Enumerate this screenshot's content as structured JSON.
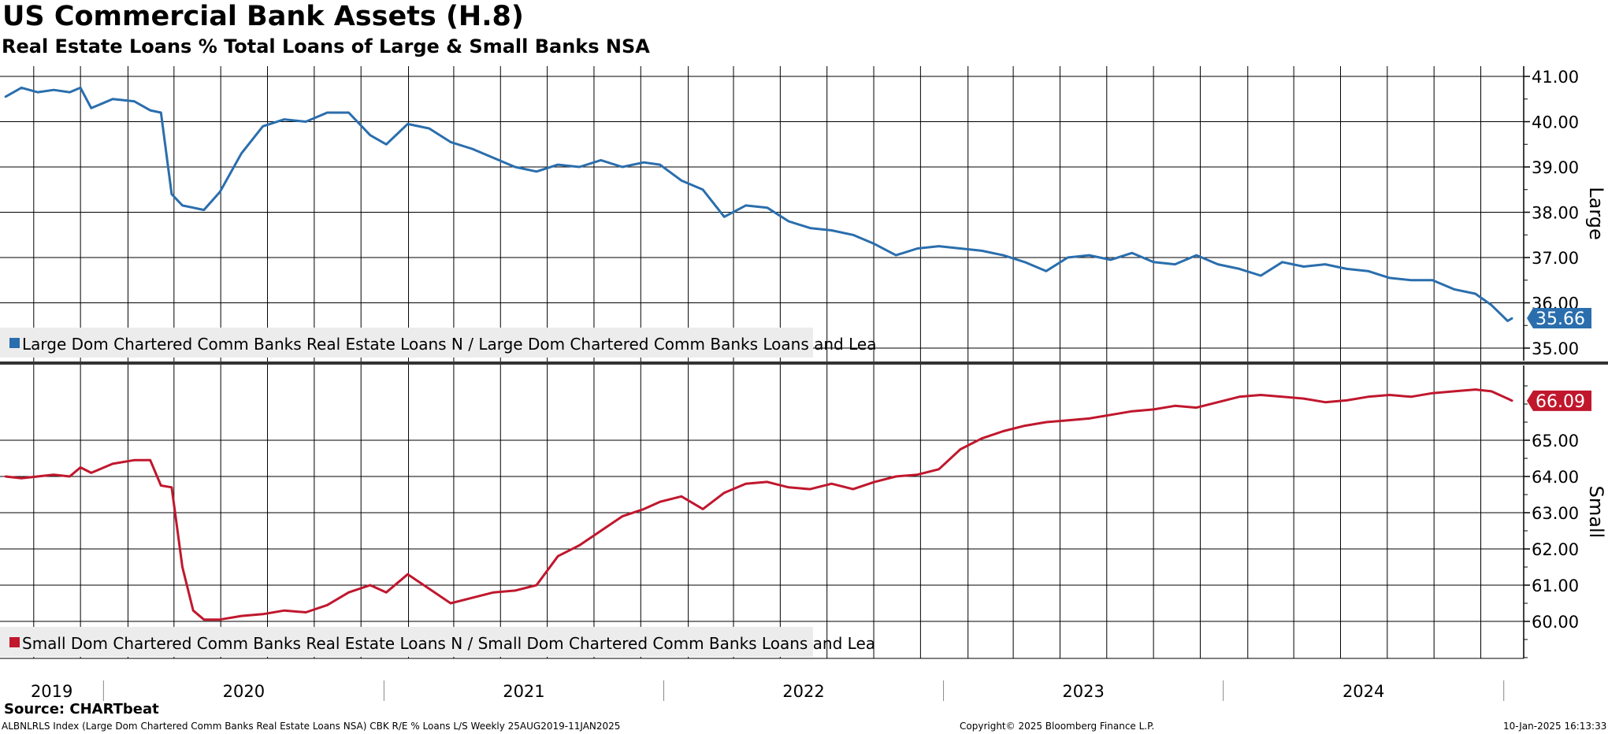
{
  "title": "US Commercial Bank Assets (H.8)",
  "subtitle": "Real Estate Loans % Total Loans of Large & Small Banks NSA",
  "source": "Source: CHARTbeat",
  "footer": {
    "left": "ALBNLRLS Index (Large Dom Chartered Comm Banks Real Estate Loans NSA) CBK R/E % Loans L/S  Weekly 25AUG2019-11JAN2025",
    "center": "Copyright© 2025 Bloomberg Finance L.P.",
    "right": "10-Jan-2025 16:13:33"
  },
  "colors": {
    "large": "#2a6ead",
    "small": "#c0172d",
    "grid": "#000000",
    "legend_bg": "#ececec"
  },
  "chart_data": [
    {
      "type": "line",
      "panel": "top",
      "axis_label": "Large",
      "ylim": [
        34.6,
        41.2
      ],
      "yticks": [
        "41.00",
        "40.00",
        "39.00",
        "38.00",
        "37.00",
        "36.00",
        "35.00"
      ],
      "grid": true,
      "legend_placement": "bottom-left",
      "x_tick_labels": [
        "2019",
        "2020",
        "2021",
        "2022",
        "2023",
        "2024"
      ],
      "last_value_label": "35.66",
      "series": [
        {
          "name": "Large Dom Chartered Comm Banks Real Estate Loans N / Large Dom Chartered Comm Banks Loans and Lea",
          "x": [
            "2019-08-25",
            "2019-09-15",
            "2019-10-06",
            "2019-10-27",
            "2019-11-17",
            "2019-12-01",
            "2019-12-15",
            "2020-01-12",
            "2020-02-09",
            "2020-03-01",
            "2020-03-15",
            "2020-03-29",
            "2020-04-12",
            "2020-04-26",
            "2020-05-10",
            "2020-05-31",
            "2020-06-28",
            "2020-07-26",
            "2020-08-23",
            "2020-09-20",
            "2020-10-18",
            "2020-11-15",
            "2020-12-13",
            "2021-01-03",
            "2021-01-31",
            "2021-02-28",
            "2021-03-28",
            "2021-04-25",
            "2021-05-23",
            "2021-06-20",
            "2021-07-18",
            "2021-08-15",
            "2021-09-12",
            "2021-10-10",
            "2021-11-07",
            "2021-12-05",
            "2021-12-26",
            "2022-01-23",
            "2022-02-20",
            "2022-03-20",
            "2022-04-17",
            "2022-05-15",
            "2022-06-12",
            "2022-07-10",
            "2022-08-07",
            "2022-09-04",
            "2022-10-02",
            "2022-10-30",
            "2022-11-27",
            "2022-12-25",
            "2023-01-22",
            "2023-02-19",
            "2023-03-19",
            "2023-04-16",
            "2023-05-14",
            "2023-06-11",
            "2023-07-09",
            "2023-08-06",
            "2023-09-03",
            "2023-10-01",
            "2023-10-29",
            "2023-11-26",
            "2023-12-24",
            "2024-01-21",
            "2024-02-18",
            "2024-03-17",
            "2024-04-14",
            "2024-05-12",
            "2024-06-09",
            "2024-07-07",
            "2024-08-04",
            "2024-09-01",
            "2024-09-29",
            "2024-10-27",
            "2024-11-24",
            "2024-12-15",
            "2025-01-05",
            "2025-01-11"
          ],
          "values": [
            40.55,
            40.75,
            40.65,
            40.7,
            40.65,
            40.75,
            40.3,
            40.5,
            40.45,
            40.25,
            40.2,
            38.4,
            38.15,
            38.1,
            38.05,
            38.45,
            39.3,
            39.9,
            40.05,
            40.0,
            40.2,
            40.2,
            39.7,
            39.5,
            39.95,
            39.85,
            39.55,
            39.4,
            39.2,
            39.0,
            38.9,
            39.05,
            39.0,
            39.15,
            39.0,
            39.1,
            39.05,
            38.7,
            38.5,
            37.9,
            38.15,
            38.1,
            37.8,
            37.65,
            37.6,
            37.5,
            37.3,
            37.05,
            37.2,
            37.25,
            37.2,
            37.15,
            37.05,
            36.9,
            36.7,
            37.0,
            37.05,
            36.95,
            37.1,
            36.9,
            36.85,
            37.05,
            36.85,
            36.75,
            36.6,
            36.9,
            36.8,
            36.85,
            36.75,
            36.7,
            36.55,
            36.5,
            36.5,
            36.3,
            36.2,
            35.95,
            35.6,
            35.66
          ]
        }
      ]
    },
    {
      "type": "line",
      "panel": "bottom",
      "axis_label": "Small",
      "ylim": [
        59.0,
        66.8
      ],
      "yticks": [
        "65.00",
        "64.00",
        "63.00",
        "62.00",
        "61.00",
        "60.00"
      ],
      "grid": true,
      "legend_placement": "bottom-left",
      "x_tick_labels": [
        "2019",
        "2020",
        "2021",
        "2022",
        "2023",
        "2024"
      ],
      "last_value_label": "66.09",
      "series": [
        {
          "name": "Small Dom Chartered Comm Banks Real Estate Loans N / Small Dom Chartered Comm Banks Loans and Lea",
          "x": [
            "2019-08-25",
            "2019-09-15",
            "2019-10-06",
            "2019-10-27",
            "2019-11-17",
            "2019-12-01",
            "2019-12-15",
            "2020-01-12",
            "2020-02-09",
            "2020-03-01",
            "2020-03-15",
            "2020-03-29",
            "2020-04-12",
            "2020-04-26",
            "2020-05-10",
            "2020-05-31",
            "2020-06-28",
            "2020-07-26",
            "2020-08-23",
            "2020-09-20",
            "2020-10-18",
            "2020-11-15",
            "2020-12-13",
            "2021-01-03",
            "2021-01-31",
            "2021-02-28",
            "2021-03-28",
            "2021-04-25",
            "2021-05-23",
            "2021-06-20",
            "2021-07-18",
            "2021-08-15",
            "2021-09-12",
            "2021-10-10",
            "2021-11-07",
            "2021-12-05",
            "2021-12-26",
            "2022-01-23",
            "2022-02-20",
            "2022-03-20",
            "2022-04-17",
            "2022-05-15",
            "2022-06-12",
            "2022-07-10",
            "2022-08-07",
            "2022-09-04",
            "2022-10-02",
            "2022-10-30",
            "2022-11-27",
            "2022-12-25",
            "2023-01-22",
            "2023-02-19",
            "2023-03-19",
            "2023-04-16",
            "2023-05-14",
            "2023-06-11",
            "2023-07-09",
            "2023-08-06",
            "2023-09-03",
            "2023-10-01",
            "2023-10-29",
            "2023-11-26",
            "2023-12-24",
            "2024-01-21",
            "2024-02-18",
            "2024-03-17",
            "2024-04-14",
            "2024-05-12",
            "2024-06-09",
            "2024-07-07",
            "2024-08-04",
            "2024-09-01",
            "2024-09-29",
            "2024-10-27",
            "2024-11-24",
            "2024-12-15",
            "2025-01-05",
            "2025-01-11"
          ],
          "values": [
            64.0,
            63.95,
            64.0,
            64.05,
            64.0,
            64.25,
            64.1,
            64.35,
            64.45,
            64.45,
            63.75,
            63.7,
            61.5,
            60.3,
            60.05,
            60.05,
            60.15,
            60.2,
            60.3,
            60.25,
            60.45,
            60.8,
            61.0,
            60.8,
            61.3,
            60.9,
            60.5,
            60.65,
            60.8,
            60.85,
            61.0,
            61.8,
            62.1,
            62.5,
            62.9,
            63.1,
            63.3,
            63.45,
            63.1,
            63.55,
            63.8,
            63.85,
            63.7,
            63.65,
            63.8,
            63.65,
            63.85,
            64.0,
            64.05,
            64.2,
            64.75,
            65.05,
            65.25,
            65.4,
            65.5,
            65.55,
            65.6,
            65.7,
            65.8,
            65.85,
            65.95,
            65.9,
            66.05,
            66.2,
            66.25,
            66.2,
            66.15,
            66.05,
            66.1,
            66.2,
            66.25,
            66.2,
            66.3,
            66.35,
            66.4,
            66.35,
            66.15,
            66.09
          ]
        }
      ]
    }
  ]
}
